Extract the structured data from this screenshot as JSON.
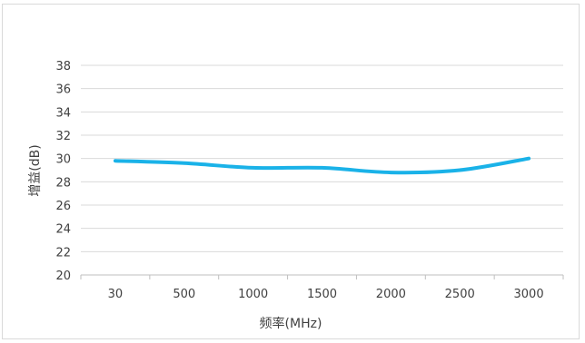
{
  "chart_data": {
    "type": "line",
    "categories": [
      "30",
      "500",
      "1000",
      "1500",
      "2000",
      "2500",
      "3000"
    ],
    "series": [
      {
        "values": [
          29.8,
          29.6,
          29.2,
          29.2,
          28.8,
          29.0,
          30.0
        ],
        "color": "#1ab2e8"
      }
    ],
    "title": "",
    "xlabel": "频率(MHz)",
    "ylabel": "增益(dB)",
    "ylim": [
      20,
      38
    ],
    "yticks": [
      20,
      22,
      24,
      26,
      28,
      30,
      32,
      34,
      36,
      38
    ],
    "grid": true,
    "legend": "none"
  }
}
